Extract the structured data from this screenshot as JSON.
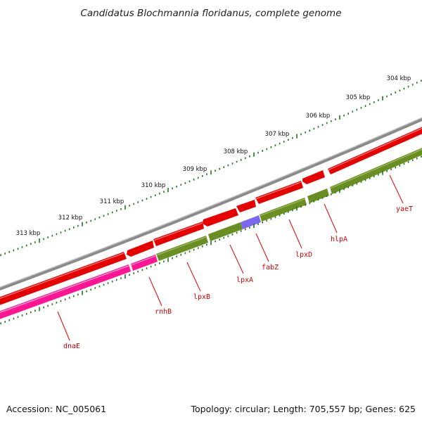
{
  "title": "Candidatus Blochmannia floridanus, complete genome",
  "footer": {
    "accession": "Accession: NC_005061",
    "summary": "Topology: circular; Length: 705,557 bp; Genes: 625"
  },
  "scale_labels": [
    "304 kbp",
    "305 kbp",
    "306 kbp",
    "307 kbp",
    "308 kbp",
    "309 kbp",
    "310 kbp",
    "311 kbp",
    "312 kbp",
    "313 kbp"
  ],
  "genes": [
    "dnaE",
    "rnhB",
    "lpxB",
    "lpxA",
    "fabZ",
    "lpxD",
    "hlpA",
    "yaeT"
  ],
  "colors": {
    "backbone": "#8a8a8a",
    "forward_strand": "#e60000",
    "gene_olive": "#6b8e23",
    "gene_pink": "#ff1493",
    "gene_purple": "#7b68ee",
    "ticks": "#1a7a1a",
    "label_red": "#cc0000"
  }
}
